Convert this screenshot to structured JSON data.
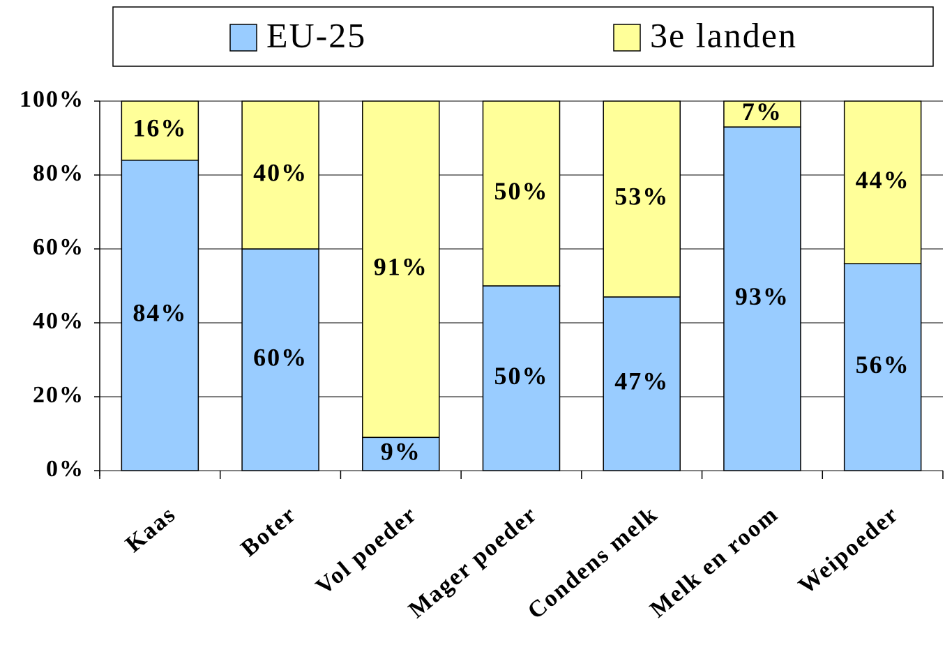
{
  "chart_data": {
    "type": "stacked_bar",
    "categories": [
      "Kaas",
      "Boter",
      "Vol poeder",
      "Mager poeder",
      "Condens melk",
      "Melk en room",
      "Weipoeder"
    ],
    "series": [
      {
        "name": "EU-25",
        "color": "#99ccff",
        "values": [
          84,
          60,
          9,
          50,
          47,
          93,
          56
        ],
        "value_labels": [
          "84%",
          "60%",
          "9%",
          "50%",
          "47%",
          "93%",
          "56%"
        ]
      },
      {
        "name": "3e landen",
        "color": "#ffff99",
        "values": [
          16,
          40,
          91,
          50,
          53,
          7,
          44
        ],
        "value_labels": [
          "16%",
          "40%",
          "91%",
          "50%",
          "53%",
          "7%",
          "44%"
        ]
      }
    ],
    "ylim": [
      0,
      100
    ],
    "yticks": [
      {
        "value": 0,
        "label": "0%"
      },
      {
        "value": 20,
        "label": "20%"
      },
      {
        "value": 40,
        "label": "40%"
      },
      {
        "value": 60,
        "label": "60%"
      },
      {
        "value": 80,
        "label": "80%"
      },
      {
        "value": 100,
        "label": "100%"
      }
    ],
    "grid": true,
    "legend": "top"
  }
}
